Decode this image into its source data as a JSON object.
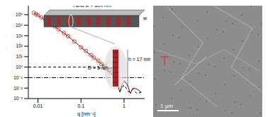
{
  "chart_data": {
    "type": "line",
    "log": true,
    "x_label": "q [nm⁻¹]",
    "y_label": "I [cm⁻¹]",
    "xlim": [
      0.006,
      3
    ],
    "xticks": [
      0.01,
      0.1,
      1
    ],
    "ylim": [
      0.001,
      1000000
    ],
    "yticks": [
      {
        "value": 0.001,
        "label": "10⁻³"
      },
      {
        "value": 0.01,
        "label": "10⁻²"
      },
      {
        "value": 0.1,
        "label": "10⁻¹"
      },
      {
        "value": 1,
        "label": "10⁰"
      },
      {
        "value": 10,
        "label": "10¹"
      },
      {
        "value": 100,
        "label": "10²"
      },
      {
        "value": 1000,
        "label": "10³"
      },
      {
        "value": 10000,
        "label": "10⁴"
      },
      {
        "value": 100000,
        "label": "10⁵"
      },
      {
        "value": 1000000,
        "label": "10⁶"
      }
    ],
    "series": [
      {
        "type": "scatter",
        "marker": "open_circle",
        "color": "#c0392b",
        "x": [
          0.008,
          0.009,
          0.01,
          0.012,
          0.015,
          0.018,
          0.02,
          0.025,
          0.03,
          0.04,
          0.05,
          0.07,
          0.1,
          0.13,
          0.17,
          0.2,
          0.25,
          0.3,
          0.35,
          0.4,
          0.45,
          0.5
        ],
        "values": [
          150000,
          115000,
          90000,
          55000,
          30000,
          19000,
          14000,
          7500,
          4000,
          1800,
          900,
          280,
          80,
          35,
          14,
          8,
          4,
          2,
          1.2,
          0.7,
          0.45,
          0.3
        ]
      },
      {
        "type": "line",
        "line_style": "solid",
        "color": "#8b0000",
        "x": [
          0.008,
          0.01,
          0.015,
          0.02,
          0.03,
          0.05,
          0.07,
          0.1,
          0.15,
          0.2,
          0.3,
          0.4,
          0.5,
          0.6,
          0.7,
          0.8,
          0.9,
          1.0,
          1.2,
          1.4,
          1.6,
          2.0,
          2.5
        ],
        "values": [
          150000,
          90000,
          30000,
          14000,
          4000,
          900,
          280,
          80,
          20,
          8,
          2,
          0.7,
          0.3,
          0.1,
          0.02,
          0.004,
          0.02,
          0.05,
          0.02,
          0.003,
          0.01,
          0.008,
          0.004
        ]
      },
      {
        "type": "line",
        "line_style": "dashed",
        "color": "#000000",
        "x": [
          0.006,
          0.05,
          0.1,
          0.2,
          0.3,
          0.5,
          0.7,
          0.8,
          1.0,
          1.3,
          1.6,
          2.0,
          2.5
        ],
        "values": [
          1,
          1,
          1,
          0.95,
          0.8,
          0.3,
          0.03,
          0.005,
          0.02,
          0.004,
          0.008,
          0.003,
          0.004
        ]
      },
      {
        "type": "line",
        "line_style": "dashdot",
        "color": "#000000",
        "x": [
          0.006,
          3
        ],
        "values": [
          0.1,
          0.1
        ]
      }
    ],
    "annotations": [
      "l and w > 800 nm",
      "w",
      "D = 5 nm",
      "h = 17 nm",
      "1 μm"
    ]
  }
}
